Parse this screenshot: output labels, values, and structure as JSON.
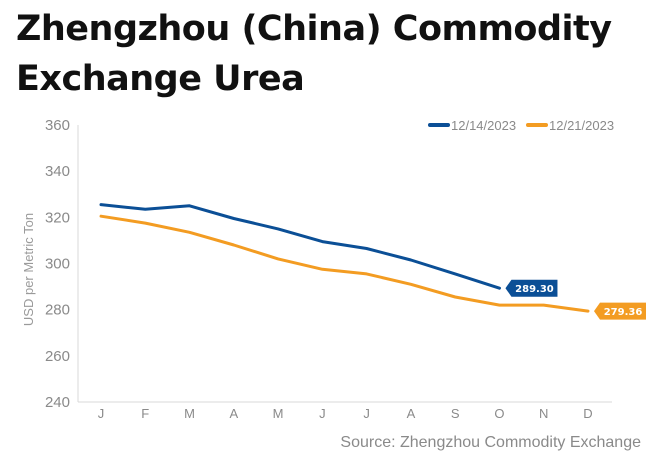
{
  "chart_data": {
    "type": "line",
    "title": "Zhengzhou (China) Commodity Exchange Urea",
    "ylabel": "USD per Metric Ton",
    "xlabel": "",
    "categories": [
      "J",
      "F",
      "M",
      "A",
      "M",
      "J",
      "J",
      "A",
      "S",
      "O",
      "N",
      "D"
    ],
    "ylim": [
      240,
      360
    ],
    "yticks": [
      240,
      260,
      280,
      300,
      320,
      340,
      360
    ],
    "grid": false,
    "legend_position": "top-right",
    "series": [
      {
        "name": "12/14/2023",
        "color": "#0b4f96",
        "values": [
          325.5,
          323.5,
          325.0,
          319.5,
          315.0,
          309.5,
          306.5,
          301.5,
          295.5,
          289.3,
          null,
          null
        ],
        "end_label": "289.30"
      },
      {
        "name": "12/21/2023",
        "color": "#f39c22",
        "values": [
          320.5,
          317.5,
          313.5,
          308.0,
          302.0,
          297.5,
          295.5,
          291.0,
          285.5,
          282.0,
          282.0,
          279.36
        ],
        "end_label": "279.36"
      }
    ],
    "source": "Source: Zhengzhou Commodity Exchange"
  }
}
